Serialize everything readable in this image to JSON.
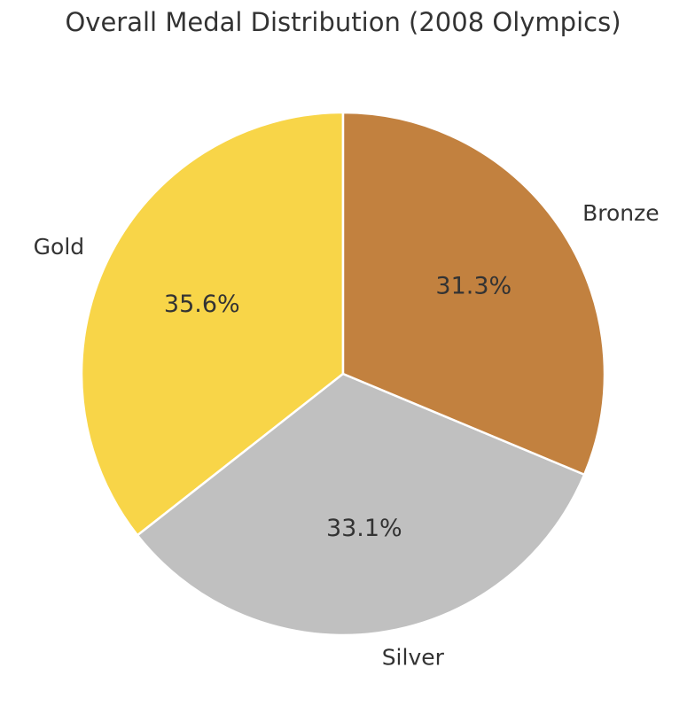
{
  "chart_data": {
    "type": "pie",
    "title": "Overall Medal Distribution (2008 Olympics)",
    "categories": [
      "Gold",
      "Silver",
      "Bronze"
    ],
    "values": [
      35.6,
      33.1,
      31.3
    ],
    "percent_labels": [
      "35.6%",
      "33.1%",
      "31.3%"
    ],
    "colors": [
      "#f8d548",
      "#c0c0c0",
      "#c2813f"
    ],
    "start_angle_deg": 90,
    "direction": "counterclockwise",
    "legend": "none"
  }
}
